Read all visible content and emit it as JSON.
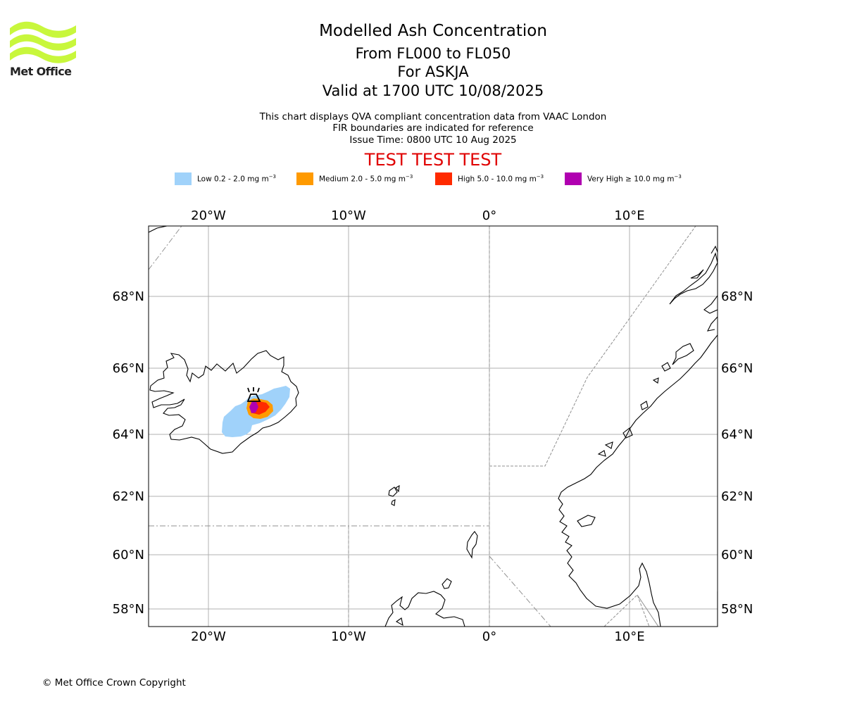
{
  "logo": {
    "text": "Met Office",
    "color": "#c8f73c"
  },
  "header": {
    "title": "Modelled Ash Concentration",
    "flight_levels": "From FL000 to FL050",
    "volcano": "For ASKJA",
    "valid_time": "Valid at 1700 UTC 10/08/2025",
    "description": "This chart displays QVA compliant concentration data from VAAC London",
    "fir_note": "FIR boundaries are indicated for reference",
    "issue_time": "Issue Time: 0800 UTC 10 Aug 2025",
    "test_banner": "TEST TEST TEST"
  },
  "legend": [
    {
      "label": "Low 0.2 - 2.0 mg m",
      "color": "#a0d2fa"
    },
    {
      "label": "Medium 2.0 - 5.0 mg m",
      "color": "#ff9a00"
    },
    {
      "label": "High 5.0 - 10.0 mg m",
      "color": "#ff2a00"
    },
    {
      "label": "Very High ≥ 10.0 mg m",
      "color": "#b000b0"
    }
  ],
  "legend_unit_exponent": "−3",
  "map": {
    "lon_labels": [
      "20°W",
      "10°W",
      "0°",
      "10°E"
    ],
    "lat_labels": [
      "68°N",
      "66°N",
      "64°N",
      "62°N",
      "60°N",
      "58°N"
    ],
    "volcano_marker": "volcano-icon",
    "gridline_color": "#b0b0b0",
    "fir_color": "#909090"
  },
  "footer": {
    "copyright": "© Met Office Crown Copyright"
  }
}
